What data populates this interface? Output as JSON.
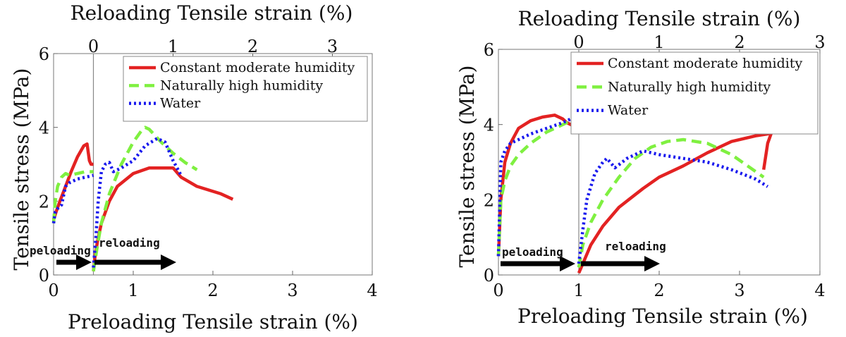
{
  "chart_data": [
    {
      "type": "line",
      "xlabel": "Preloading Tensile strain (%)",
      "x2label": "Reloading Tensile strain (%)",
      "ylabel": "Tensile stress (MPa)",
      "xlim": [
        0,
        4
      ],
      "ylim": [
        0,
        6
      ],
      "x2lim": [
        -0.5,
        3.5
      ],
      "xticks": [
        "0",
        "1",
        "2",
        "3",
        "4"
      ],
      "x2ticks": [
        "0",
        "1",
        "2",
        "3"
      ],
      "yticks": [
        "0",
        "2",
        "4",
        "6"
      ],
      "split_x": 0.5,
      "legend_position": "top-right",
      "annotations": [
        "peloading",
        "reloading"
      ],
      "series": [
        {
          "name": "Constant moderate humidity",
          "color": "#e32222",
          "dash": "solid",
          "preloading": {
            "x": [
              0,
              0.03,
              0.08,
              0.15,
              0.22,
              0.3,
              0.38,
              0.42,
              0.45,
              0.47,
              0.5
            ],
            "y": [
              1.5,
              1.7,
              2.0,
              2.4,
              2.8,
              3.2,
              3.5,
              3.55,
              3.1,
              3.0,
              3.0
            ]
          },
          "reloading": {
            "x": [
              0,
              0.02,
              0.05,
              0.1,
              0.2,
              0.3,
              0.5,
              0.7,
              1.0,
              1.1,
              1.3,
              1.6,
              1.75
            ],
            "y": [
              0.1,
              0.5,
              0.9,
              1.4,
              2.0,
              2.4,
              2.75,
              2.9,
              2.9,
              2.65,
              2.4,
              2.2,
              2.05
            ]
          }
        },
        {
          "name": "Naturally high humidity",
          "color": "#7ff040",
          "dash": "dash",
          "preloading": {
            "x": [
              0,
              0.02,
              0.05,
              0.1,
              0.15,
              0.2,
              0.3,
              0.4,
              0.5
            ],
            "y": [
              1.4,
              2.0,
              2.4,
              2.65,
              2.75,
              2.7,
              2.75,
              2.8,
              2.8
            ]
          },
          "reloading": {
            "x": [
              0,
              0.05,
              0.1,
              0.2,
              0.35,
              0.5,
              0.6,
              0.65,
              0.7,
              0.85,
              1.0,
              1.15,
              1.3
            ],
            "y": [
              0.1,
              0.8,
              1.4,
              2.2,
              3.0,
              3.6,
              3.9,
              4.0,
              3.95,
              3.6,
              3.3,
              3.05,
              2.85
            ]
          }
        },
        {
          "name": "Water",
          "color": "#1a1aee",
          "dash": "dot",
          "preloading": {
            "x": [
              0,
              0.02,
              0.05,
              0.1,
              0.15,
              0.2,
              0.3,
              0.4,
              0.5
            ],
            "y": [
              1.4,
              1.7,
              1.8,
              1.9,
              2.4,
              2.5,
              2.6,
              2.65,
              2.7
            ]
          },
          "reloading": {
            "x": [
              0,
              0.03,
              0.06,
              0.1,
              0.15,
              0.2,
              0.25,
              0.35,
              0.5,
              0.65,
              0.8,
              0.9,
              1.0,
              1.1
            ],
            "y": [
              0.2,
              1.0,
              2.0,
              2.8,
              3.0,
              3.05,
              2.8,
              2.9,
              3.1,
              3.5,
              3.7,
              3.6,
              3.1,
              2.7
            ]
          }
        }
      ]
    },
    {
      "type": "line",
      "xlabel": "Preloading Tensile strain (%)",
      "x2label": "Reloading Tensile strain (%)",
      "ylabel": "Tensile stress (MPa)",
      "xlim": [
        0,
        4
      ],
      "ylim": [
        0,
        6
      ],
      "x2lim": [
        -1,
        3
      ],
      "xticks": [
        "0",
        "1",
        "2",
        "3",
        "4"
      ],
      "x2ticks": [
        "0",
        "1",
        "2",
        "3"
      ],
      "yticks": [
        "0",
        "2",
        "4",
        "6"
      ],
      "split_x": 1.0,
      "legend_position": "top-right",
      "annotations": [
        "peloading",
        "reloading"
      ],
      "series": [
        {
          "name": "Constant moderate humidity",
          "color": "#e32222",
          "dash": "solid",
          "preloading": {
            "x": [
              0,
              0.03,
              0.08,
              0.15,
              0.25,
              0.4,
              0.55,
              0.7,
              0.8,
              0.85,
              0.9,
              0.95,
              1.0
            ],
            "y": [
              0.5,
              2.0,
              3.0,
              3.5,
              3.9,
              4.1,
              4.2,
              4.25,
              4.15,
              4.05,
              4.0,
              3.95,
              3.9
            ]
          },
          "reloading": {
            "x": [
              0,
              0.05,
              0.15,
              0.3,
              0.5,
              0.8,
              1.0,
              1.3,
              1.6,
              1.9,
              2.2,
              2.35,
              2.4,
              2.35,
              2.3
            ],
            "y": [
              0.05,
              0.3,
              0.8,
              1.3,
              1.8,
              2.3,
              2.6,
              2.9,
              3.25,
              3.55,
              3.7,
              3.75,
              3.8,
              3.5,
              2.8
            ]
          }
        },
        {
          "name": "Naturally high humidity",
          "color": "#7ff040",
          "dash": "dash",
          "preloading": {
            "x": [
              0,
              0.03,
              0.08,
              0.15,
              0.25,
              0.4,
              0.6,
              0.8,
              0.9,
              1.0
            ],
            "y": [
              0.5,
              2.0,
              2.5,
              2.9,
              3.2,
              3.5,
              3.8,
              4.0,
              4.1,
              4.1
            ]
          },
          "reloading": {
            "x": [
              0,
              0.05,
              0.15,
              0.3,
              0.5,
              0.7,
              0.9,
              1.1,
              1.3,
              1.6,
              1.9,
              2.1,
              2.3
            ],
            "y": [
              0.2,
              0.8,
              1.4,
              2.0,
              2.6,
              3.1,
              3.4,
              3.55,
              3.6,
              3.5,
              3.2,
              2.9,
              2.6
            ]
          }
        },
        {
          "name": "Water",
          "color": "#1a1aee",
          "dash": "dot",
          "preloading": {
            "x": [
              0,
              0.03,
              0.08,
              0.15,
              0.25,
              0.4,
              0.6,
              0.8,
              0.9,
              1.0
            ],
            "y": [
              0.5,
              3.0,
              3.3,
              3.5,
              3.6,
              3.75,
              3.9,
              4.05,
              4.15,
              4.1
            ]
          },
          "reloading": {
            "x": [
              0,
              0.05,
              0.1,
              0.2,
              0.3,
              0.35,
              0.45,
              0.6,
              0.8,
              1.0,
              1.3,
              1.6,
              1.9,
              2.2,
              2.35
            ],
            "y": [
              0.3,
              1.2,
              2.0,
              2.7,
              3.0,
              3.1,
              2.85,
              3.1,
              3.3,
              3.2,
              3.1,
              3.0,
              2.8,
              2.55,
              2.35
            ]
          }
        }
      ]
    }
  ]
}
